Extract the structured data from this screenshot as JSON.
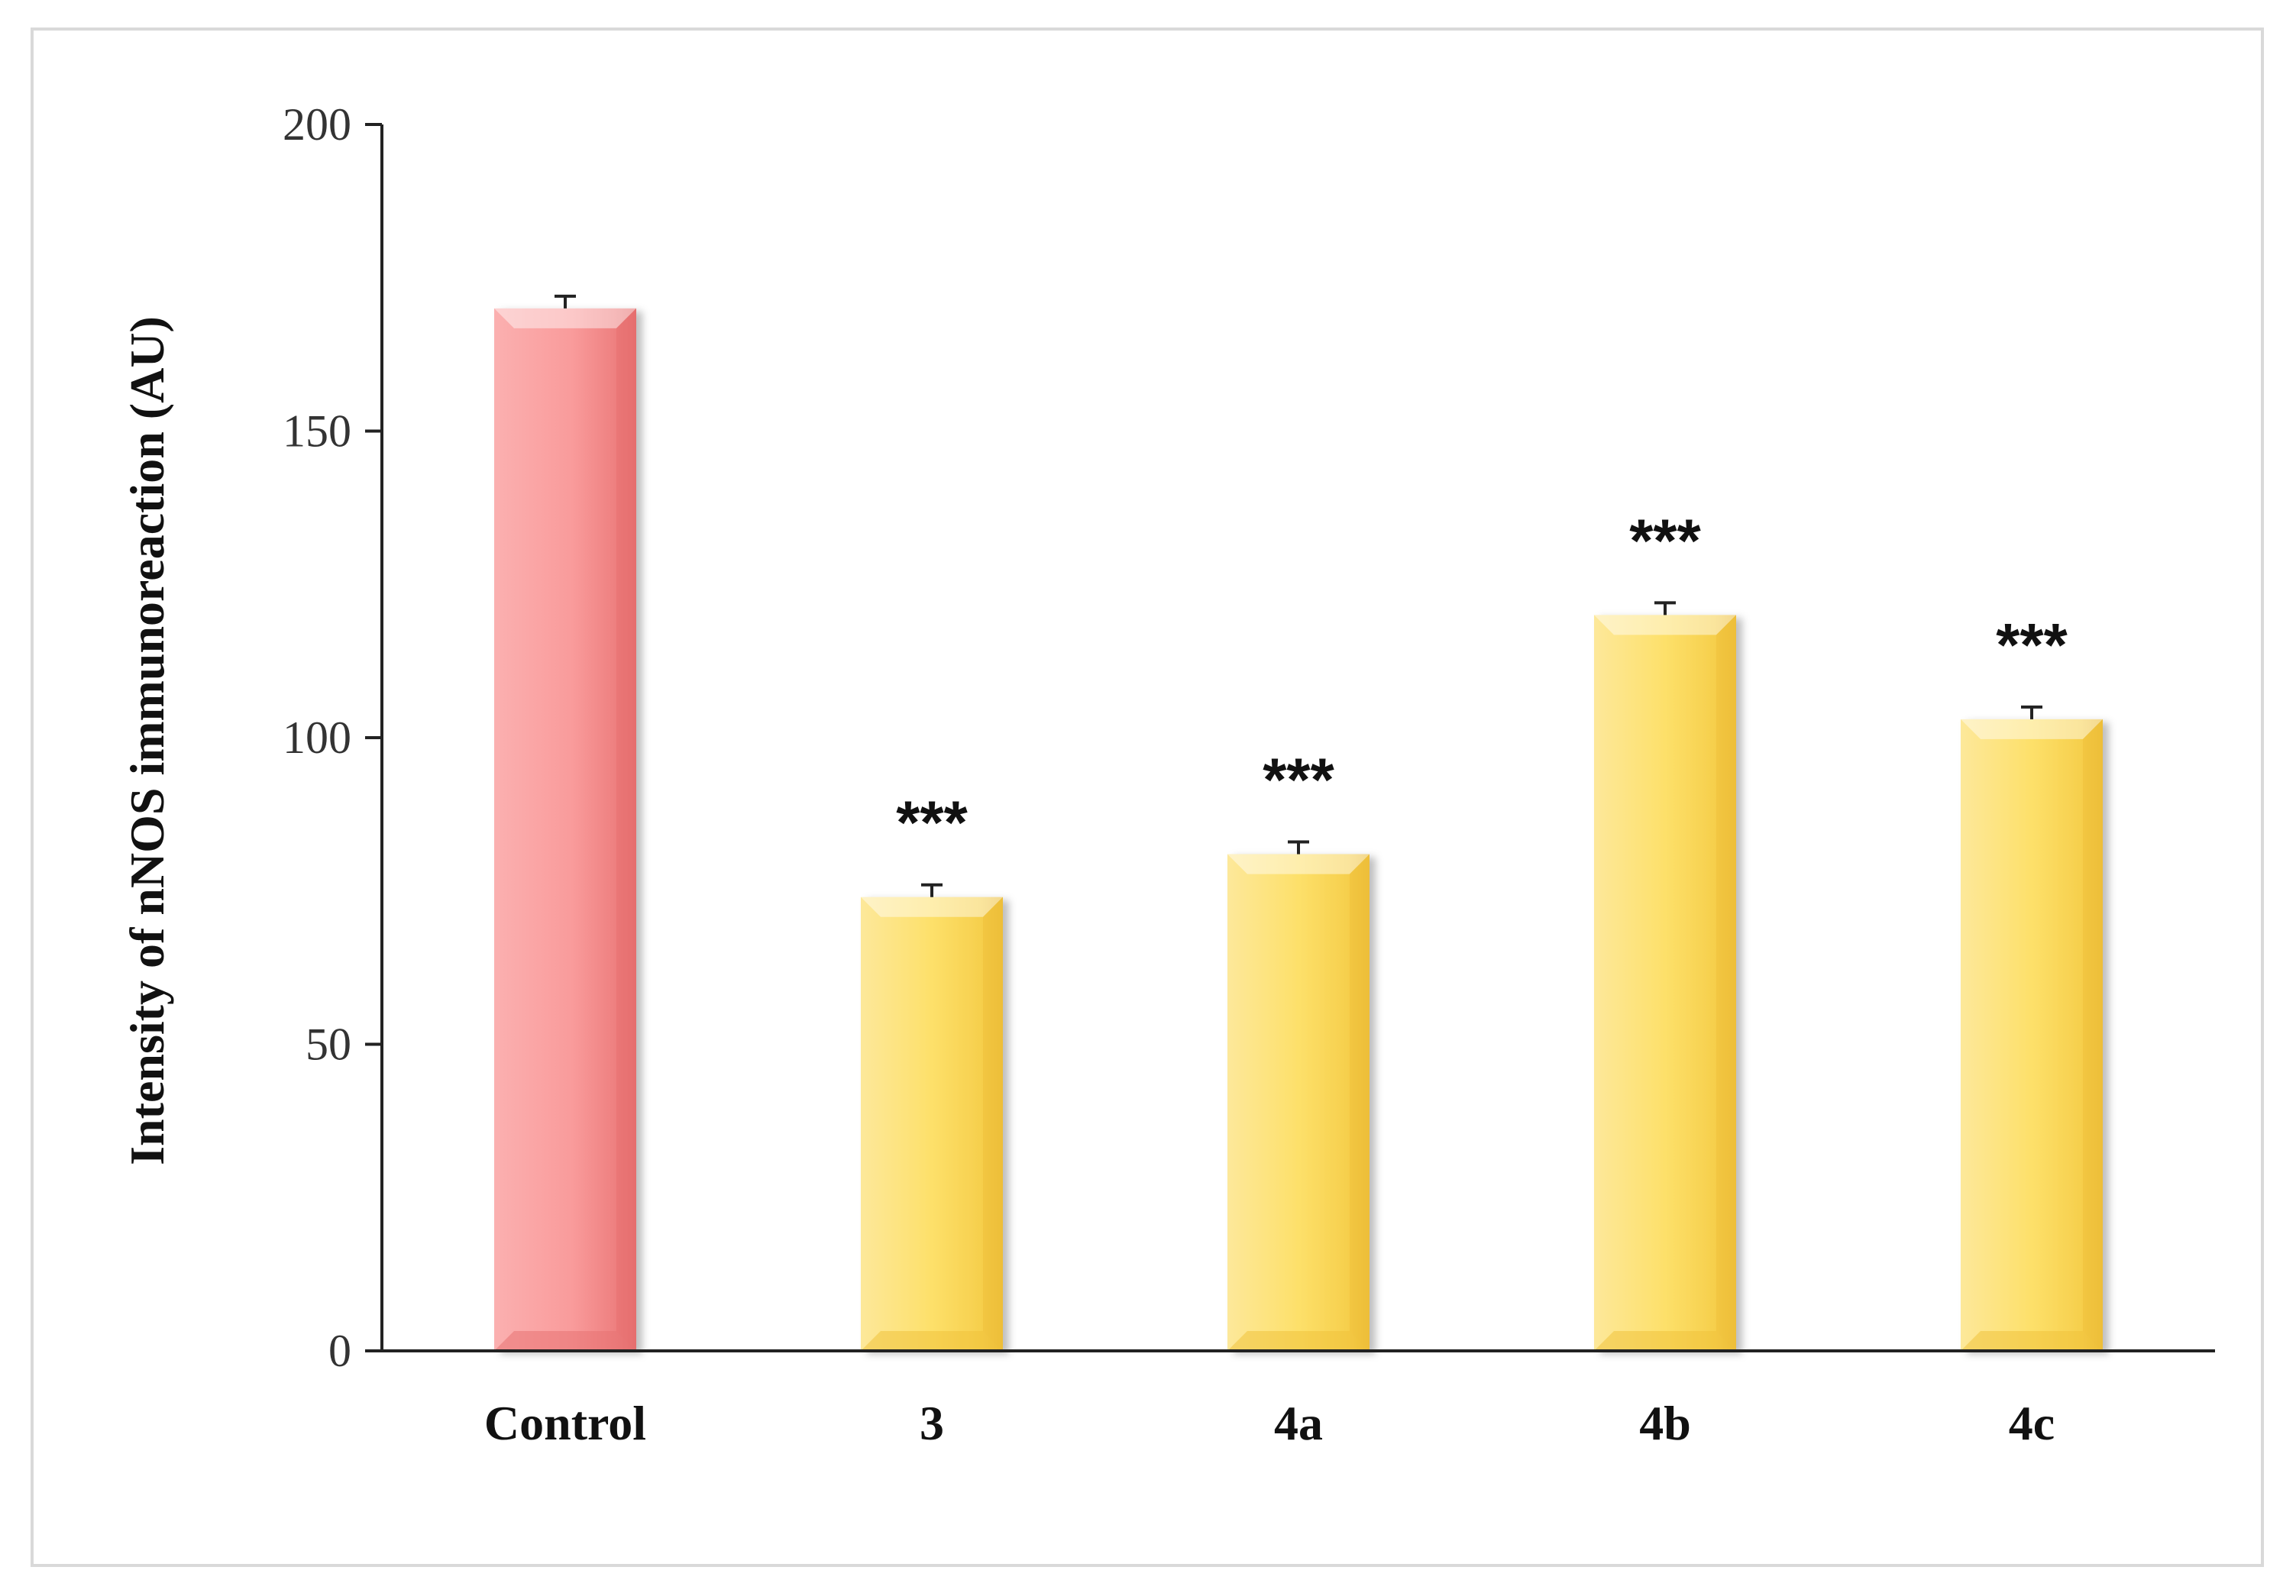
{
  "chart_data": {
    "type": "bar",
    "categories": [
      "Control",
      "3",
      "4a",
      "4b",
      "4c"
    ],
    "values": [
      170,
      74,
      81,
      120,
      103
    ],
    "errors": [
      2,
      2,
      2,
      2,
      2
    ],
    "significance": [
      "",
      "***",
      "***",
      "***",
      "***"
    ],
    "ylabel": "Intensity of  nNOS immunoreaction (AU)",
    "xlabel": "",
    "ylim": [
      0,
      200
    ],
    "yticks": [
      0,
      50,
      100,
      150,
      200
    ],
    "grid": false,
    "colors": {
      "control": "#f99b9b",
      "control_dark": "#e87272",
      "treatment": "#fde06a",
      "treatment_dark": "#f0c23c",
      "axis": "#222222"
    }
  }
}
